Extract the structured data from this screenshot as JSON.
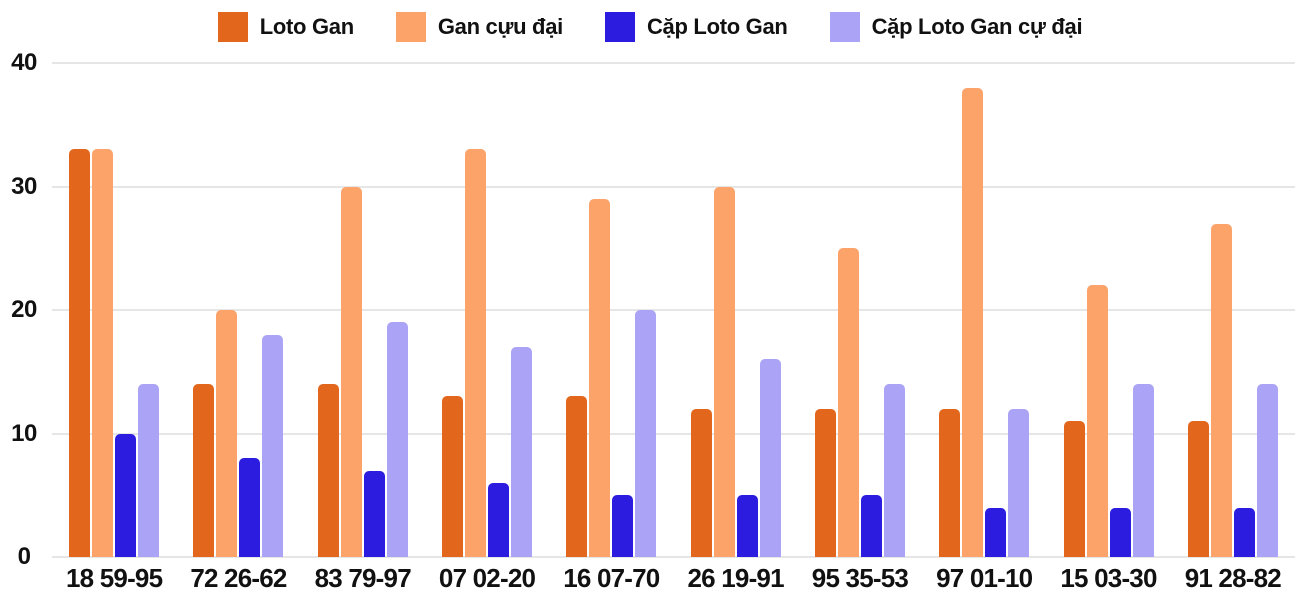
{
  "chart_data": {
    "type": "bar",
    "title": "",
    "xlabel": "",
    "ylabel": "",
    "ylim": [
      0,
      40
    ],
    "yticks": [
      0,
      10,
      20,
      30,
      40
    ],
    "grid": "horizontal",
    "legend_position": "top",
    "categories": [
      "18 59-95",
      "72 26-62",
      "83 79-97",
      "07 02-20",
      "16 07-70",
      "26 19-91",
      "95 35-53",
      "97 01-10",
      "15 03-30",
      "91 28-82"
    ],
    "series": [
      {
        "name": "Loto Gan",
        "color": "#e2661c",
        "values": [
          33,
          14,
          14,
          13,
          13,
          12,
          12,
          12,
          11,
          11
        ]
      },
      {
        "name": "Gan cựu đại",
        "color": "#fca369",
        "values": [
          33,
          20,
          30,
          33,
          29,
          30,
          25,
          38,
          22,
          27
        ]
      },
      {
        "name": "Cặp Loto Gan",
        "color": "#2b1cdf",
        "values": [
          10,
          8,
          7,
          6,
          5,
          5,
          5,
          4,
          4,
          4
        ]
      },
      {
        "name": "Cặp Loto Gan cự đại",
        "color": "#aba3f5",
        "values": [
          14,
          18,
          19,
          17,
          20,
          16,
          14,
          12,
          14,
          14
        ]
      }
    ]
  },
  "colors": {
    "background": "#ffffff",
    "gridline": "#e6e6e6",
    "text": "#111111"
  }
}
